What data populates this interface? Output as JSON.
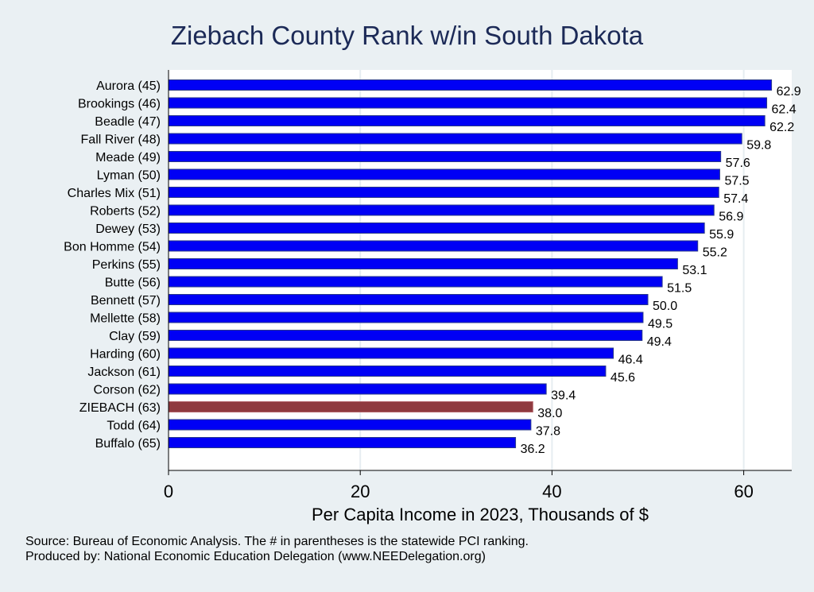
{
  "chart_data": {
    "type": "bar",
    "orientation": "horizontal",
    "title": "Ziebach County Rank w/in South Dakota",
    "xlabel": "Per Capita Income in 2023, Thousands of $",
    "ylabel": "",
    "xlim": [
      0,
      65
    ],
    "xticks": [
      0,
      20,
      40,
      60
    ],
    "grid": true,
    "categories": [
      "Aurora (45)",
      "Brookings (46)",
      "Beadle (47)",
      "Fall River (48)",
      "Meade (49)",
      "Lyman (50)",
      "Charles Mix (51)",
      "Roberts (52)",
      "Dewey (53)",
      "Bon Homme (54)",
      "Perkins (55)",
      "Butte (56)",
      "Bennett (57)",
      "Mellette (58)",
      "Clay (59)",
      "Harding (60)",
      "Jackson (61)",
      "Corson (62)",
      "ZIEBACH (63)",
      "Todd (64)",
      "Buffalo (65)"
    ],
    "values": [
      62.9,
      62.4,
      62.2,
      59.8,
      57.6,
      57.5,
      57.4,
      56.9,
      55.9,
      55.2,
      53.1,
      51.5,
      50.0,
      49.5,
      49.4,
      46.4,
      45.6,
      39.4,
      38.0,
      37.8,
      36.2
    ],
    "value_labels": [
      "62.9",
      "62.4",
      "62.2",
      "59.8",
      "57.6",
      "57.5",
      "57.4",
      "56.9",
      "55.9",
      "55.2",
      "53.1",
      "51.5",
      "50.0",
      "49.5",
      "49.4",
      "46.4",
      "45.6",
      "39.4",
      "38.0",
      "37.8",
      "36.2"
    ],
    "highlight_index": 18,
    "colors": {
      "bar": "#0000f5",
      "highlight": "#8f3a3f",
      "title": "#1c2a57"
    }
  },
  "notes": {
    "source": "Source: Bureau of Economic Analysis. The # in parentheses is the statewide PCI ranking.",
    "produced": "Produced by: National Economic Education Delegation (www.NEEDelegation.org)"
  }
}
